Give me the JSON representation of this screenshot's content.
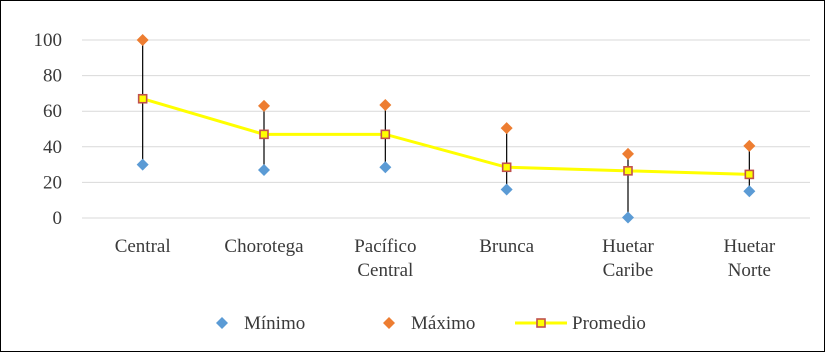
{
  "chart_data": {
    "type": "line",
    "title": "",
    "xlabel": "",
    "ylabel": "",
    "ylim": [
      0,
      100
    ],
    "yticks": [
      0,
      20,
      40,
      60,
      80,
      100
    ],
    "grid": true,
    "legend_position": "bottom",
    "categories": [
      [
        "Central"
      ],
      [
        "Chorotega"
      ],
      [
        "Pacífico",
        "Central"
      ],
      [
        "Brunca"
      ],
      [
        "Huetar",
        "Caribe"
      ],
      [
        "Huetar",
        "Norte"
      ]
    ],
    "series": [
      {
        "name": "Mínimo",
        "values": [
          30,
          27,
          28.5,
          16,
          0.3,
          15
        ],
        "color": "#5b9bd5",
        "marker": "diamond"
      },
      {
        "name": "Máximo",
        "values": [
          100,
          63,
          63.5,
          50.5,
          36,
          40.5
        ],
        "color": "#ed7d31",
        "marker": "diamond"
      },
      {
        "name": "Promedio",
        "values": [
          67,
          47,
          47,
          28.5,
          26.5,
          24.5
        ],
        "color": "#ffff00",
        "marker_color": "#c0504d",
        "marker": "square"
      }
    ],
    "range_line_color": "#000000"
  }
}
